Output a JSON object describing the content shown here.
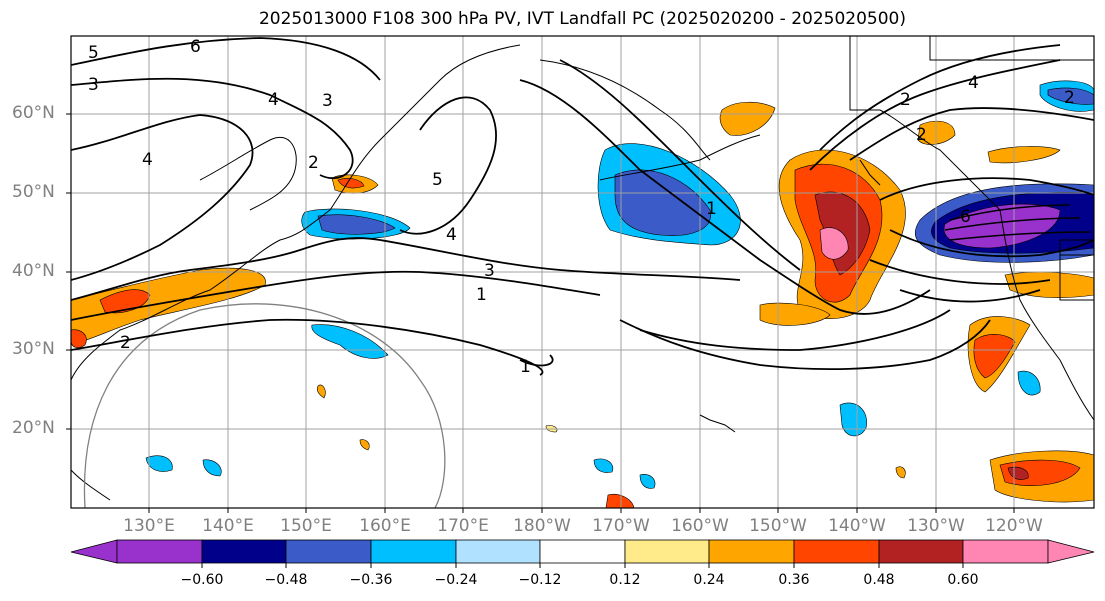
{
  "title": "2025013000 F108 300 hPa PV, IVT Landfall PC (2025020200 - 2025020500)",
  "lat_labels": [
    "60°N",
    "50°N",
    "40°N",
    "30°N",
    "20°N"
  ],
  "lon_labels": [
    "130°E",
    "140°E",
    "150°E",
    "160°E",
    "170°E",
    "180°W",
    "170°W",
    "160°W",
    "150°W",
    "140°W",
    "130°W",
    "120°W"
  ],
  "colorbar": {
    "ticks": [
      "−0.60",
      "−0.48",
      "−0.36",
      "−0.24",
      "−0.12",
      "0.12",
      "0.24",
      "0.36",
      "0.48",
      "0.60"
    ],
    "colors": [
      "#9932CC",
      "#00008B",
      "#3A5BC8",
      "#00BFFF",
      "#B0E2FF",
      "#FFFFFF",
      "#FFEB8A",
      "#FFA500",
      "#FF4500",
      "#B22222",
      "#FF85B3"
    ]
  },
  "contour_labels": [
    "5",
    "6",
    "3",
    "4",
    "3",
    "2",
    "4",
    "5",
    "2",
    "4",
    "3",
    "1",
    "1",
    "2",
    "1",
    "2",
    "4",
    "6",
    "2"
  ]
}
